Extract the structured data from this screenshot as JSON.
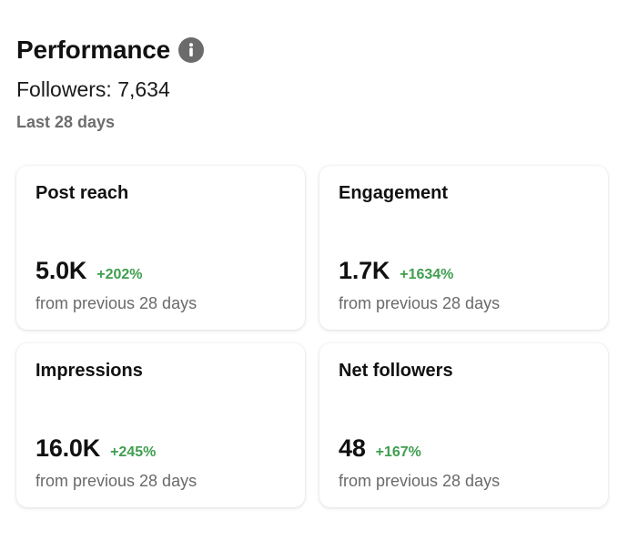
{
  "header": {
    "title": "Performance",
    "info_icon": "info-icon",
    "followers": "Followers: 7,634",
    "range": "Last 28 days"
  },
  "colors": {
    "positive_change": "#3f9e4f",
    "info_icon_bg": "#6b6b6b"
  },
  "cards": [
    {
      "title": "Post reach",
      "value": "5.0K",
      "change": "+202%",
      "sub": "from previous 28 days"
    },
    {
      "title": "Engagement",
      "value": "1.7K",
      "change": "+1634%",
      "sub": "from previous 28 days"
    },
    {
      "title": "Impressions",
      "value": "16.0K",
      "change": "+245%",
      "sub": "from previous 28 days"
    },
    {
      "title": "Net followers",
      "value": "48",
      "change": "+167%",
      "sub": "from previous 28 days"
    }
  ]
}
